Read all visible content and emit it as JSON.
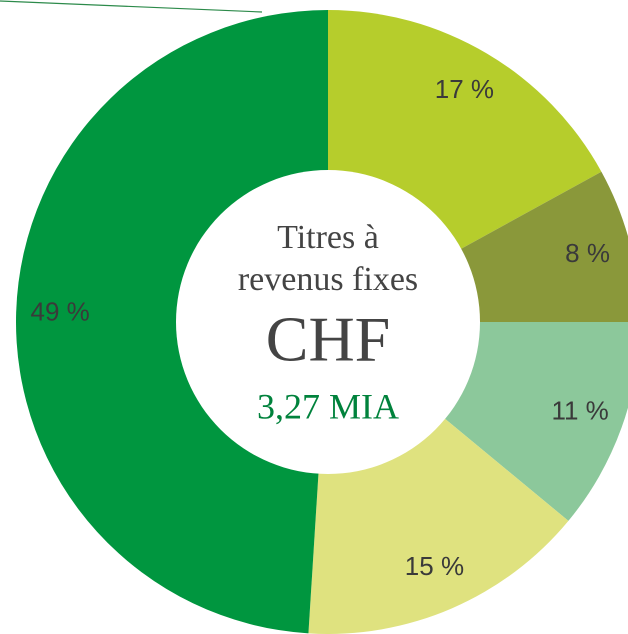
{
  "chart_data": {
    "type": "pie",
    "values": [
      17,
      8,
      11,
      15,
      49
    ],
    "value_labels": [
      "17 %",
      "8 %",
      "11 %",
      "15 %",
      "49 %"
    ],
    "colors": [
      "#b6cd2c",
      "#8a983a",
      "#8cc89b",
      "#dfe27f",
      "#00963f"
    ],
    "center_title": [
      "Titres à",
      "revenus fixes"
    ],
    "currency": "CHF",
    "total_label": "3,27 MIA"
  }
}
